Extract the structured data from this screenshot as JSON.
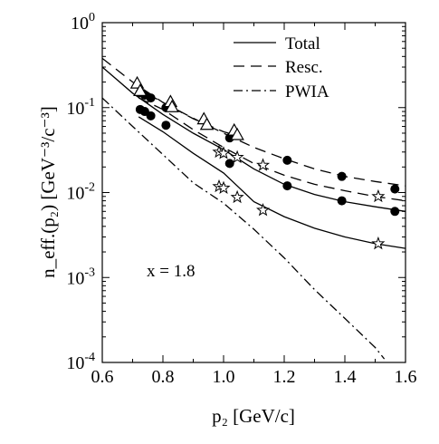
{
  "chart_data": {
    "type": "scatter",
    "xlabel": "p₂ [GeV/c]",
    "ylabel": "n_eff.(p₂) [GeV⁻³/c⁻³]",
    "xlim": [
      0.6,
      1.6
    ],
    "ylim": [
      0.0001,
      1
    ],
    "yscale": "log",
    "grid": false,
    "legend_position": "top-right",
    "x_ticks": [
      "0.6",
      "0.8",
      "1.0",
      "1.2",
      "1.4",
      "1.6"
    ],
    "x_tick_values": [
      0.6,
      0.8,
      1.0,
      1.2,
      1.4,
      1.6
    ],
    "y_tick_values": [
      1,
      0.1,
      0.01,
      0.001,
      0.0001
    ],
    "y_ticks": [
      {
        "base": "10",
        "exp": "0"
      },
      {
        "base": "10",
        "exp": "-1"
      },
      {
        "base": "10",
        "exp": "-2"
      },
      {
        "base": "10",
        "exp": "-3"
      },
      {
        "base": "10",
        "exp": "-4"
      }
    ],
    "annotation": "x = 1.8",
    "lines": [
      {
        "name": "Total",
        "style": "solid",
        "segments": [
          {
            "x": [
              0.6,
              0.7,
              0.8,
              0.9,
              1.0,
              1.1,
              1.2,
              1.3,
              1.4,
              1.5,
              1.6
            ],
            "y": [
              0.3,
              0.148,
              0.083,
              0.05,
              0.032,
              0.019,
              0.0125,
              0.0095,
              0.0078,
              0.0068,
              0.006
            ]
          },
          {
            "x": [
              0.72,
              0.8,
              0.9,
              1.0,
              1.1,
              1.2,
              1.3,
              1.4,
              1.5,
              1.6
            ],
            "y": [
              0.078,
              0.052,
              0.029,
              0.017,
              0.0078,
              0.0052,
              0.0038,
              0.003,
              0.0025,
              0.0022
            ]
          }
        ]
      },
      {
        "name": "Resc.",
        "style": "dashed",
        "segments": [
          {
            "x": [
              0.6,
              0.7,
              0.8,
              0.9,
              1.0,
              1.05
            ],
            "y": [
              0.38,
              0.2,
              0.115,
              0.074,
              0.052,
              0.046
            ]
          },
          {
            "x": [
              0.75,
              0.8,
              0.9,
              1.0,
              1.1,
              1.2,
              1.3,
              1.4,
              1.5,
              1.6
            ],
            "y": [
              0.145,
              0.115,
              0.075,
              0.05,
              0.034,
              0.025,
              0.019,
              0.0155,
              0.0135,
              0.012
            ]
          },
          {
            "x": [
              0.72,
              0.8,
              0.9,
              1.0,
              1.1,
              1.2,
              1.3,
              1.4,
              1.5,
              1.6
            ],
            "y": [
              0.13,
              0.095,
              0.055,
              0.034,
              0.022,
              0.016,
              0.0125,
              0.0105,
              0.009,
              0.008
            ]
          }
        ]
      },
      {
        "name": "PWIA",
        "style": "dash-dot",
        "segments": [
          {
            "x": [
              0.6,
              0.7,
              0.8,
              0.9,
              1.0,
              1.1,
              1.2,
              1.3,
              1.4,
              1.5,
              1.53
            ],
            "y": [
              0.13,
              0.06,
              0.028,
              0.013,
              0.0075,
              0.0037,
              0.0017,
              0.00072,
              0.00033,
              0.00015,
              0.00011
            ]
          }
        ]
      }
    ],
    "series": [
      {
        "marker": "filled-circle",
        "points": [
          {
            "x": 0.725,
            "y": 0.15
          },
          {
            "x": 0.74,
            "y": 0.14
          },
          {
            "x": 0.76,
            "y": 0.13
          },
          {
            "x": 0.81,
            "y": 0.1
          },
          {
            "x": 1.02,
            "y": 0.044
          },
          {
            "x": 1.21,
            "y": 0.024
          },
          {
            "x": 1.39,
            "y": 0.0155
          },
          {
            "x": 1.565,
            "y": 0.011
          }
        ]
      },
      {
        "marker": "filled-circle",
        "points": [
          {
            "x": 0.725,
            "y": 0.095
          },
          {
            "x": 0.74,
            "y": 0.09
          },
          {
            "x": 0.76,
            "y": 0.08
          },
          {
            "x": 0.81,
            "y": 0.062
          },
          {
            "x": 1.02,
            "y": 0.022
          },
          {
            "x": 1.21,
            "y": 0.012
          },
          {
            "x": 1.39,
            "y": 0.008
          },
          {
            "x": 1.565,
            "y": 0.006
          }
        ]
      },
      {
        "marker": "open-triangle",
        "points": [
          {
            "x": 0.715,
            "y": 0.19
          },
          {
            "x": 0.725,
            "y": 0.155
          },
          {
            "x": 0.825,
            "y": 0.115
          },
          {
            "x": 0.83,
            "y": 0.1
          },
          {
            "x": 0.935,
            "y": 0.072
          },
          {
            "x": 0.945,
            "y": 0.062
          },
          {
            "x": 1.035,
            "y": 0.053
          },
          {
            "x": 1.045,
            "y": 0.047
          }
        ]
      },
      {
        "marker": "open-star",
        "points": [
          {
            "x": 0.985,
            "y": 0.03
          },
          {
            "x": 1.0,
            "y": 0.029
          },
          {
            "x": 1.045,
            "y": 0.026
          },
          {
            "x": 1.13,
            "y": 0.021
          },
          {
            "x": 1.51,
            "y": 0.009
          },
          {
            "x": 0.985,
            "y": 0.0118
          },
          {
            "x": 1.0,
            "y": 0.0113
          },
          {
            "x": 1.045,
            "y": 0.0088
          },
          {
            "x": 1.13,
            "y": 0.0062
          },
          {
            "x": 1.51,
            "y": 0.0025
          }
        ]
      }
    ]
  }
}
